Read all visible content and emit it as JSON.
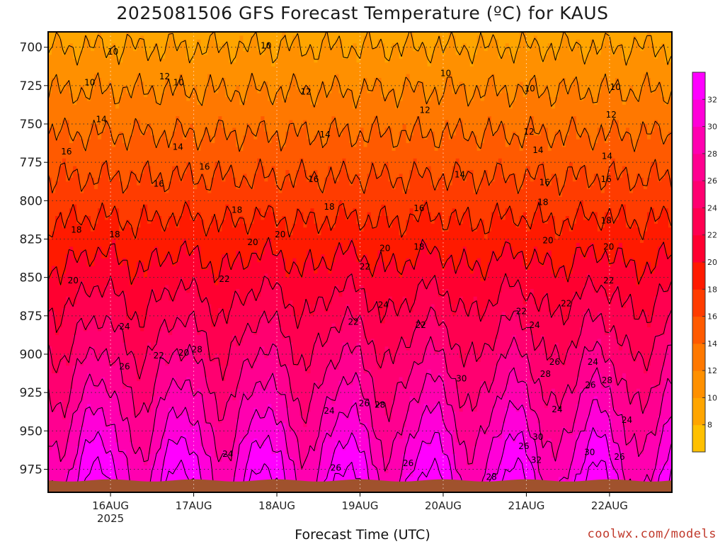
{
  "chart_data": {
    "type": "heatmap",
    "title": "2025081506 GFS Forecast Temperature (ºC) for KAUS",
    "xlabel": "Forecast Time (UTC)",
    "ylabel": "",
    "credit": "coolwx.com/models",
    "x_ticks": [
      "16AUG",
      "17AUG",
      "18AUG",
      "19AUG",
      "20AUG",
      "21AUG",
      "22AUG"
    ],
    "x_sublabel": "2025",
    "x_range_days": [
      15.25,
      22.75
    ],
    "y_ticks": [
      700,
      725,
      750,
      775,
      800,
      825,
      850,
      875,
      900,
      925,
      950,
      975
    ],
    "y_range_hpa": [
      690,
      990
    ],
    "y_inverted": true,
    "grid": "dotted",
    "colorbar": {
      "levels": [
        6,
        8,
        10,
        12,
        14,
        16,
        18,
        20,
        22,
        24,
        26,
        28,
        30,
        32,
        34
      ],
      "tick_labels": [
        "8",
        "10",
        "12",
        "14",
        "16",
        "18",
        "20",
        "22",
        "24",
        "26",
        "28",
        "30",
        "32"
      ],
      "colors": [
        "#ffc000",
        "#ffa500",
        "#ff9000",
        "#ff7800",
        "#ff5a00",
        "#ff3c00",
        "#ff1a00",
        "#ff0030",
        "#ff0050",
        "#ff0070",
        "#ff0090",
        "#ff00b0",
        "#ff00d8",
        "#ff00ff"
      ]
    },
    "contour_labels": [
      {
        "v": "10",
        "day": 15.75,
        "p": 723
      },
      {
        "v": "10",
        "day": 16.03,
        "p": 703
      },
      {
        "v": "12",
        "day": 16.65,
        "p": 719
      },
      {
        "v": "10",
        "day": 16.82,
        "p": 723
      },
      {
        "v": "14",
        "day": 15.89,
        "p": 747
      },
      {
        "v": "16",
        "day": 15.47,
        "p": 768
      },
      {
        "v": "14",
        "day": 16.81,
        "p": 765
      },
      {
        "v": "16",
        "day": 16.58,
        "p": 789
      },
      {
        "v": "16",
        "day": 17.13,
        "p": 778
      },
      {
        "v": "18",
        "day": 15.59,
        "p": 819
      },
      {
        "v": "18",
        "day": 16.05,
        "p": 822
      },
      {
        "v": "18",
        "day": 17.52,
        "p": 806
      },
      {
        "v": "20",
        "day": 15.55,
        "p": 852
      },
      {
        "v": "20",
        "day": 17.71,
        "p": 827
      },
      {
        "v": "20",
        "day": 18.04,
        "p": 822
      },
      {
        "v": "22",
        "day": 17.37,
        "p": 851
      },
      {
        "v": "24",
        "day": 16.17,
        "p": 882
      },
      {
        "v": "22",
        "day": 16.58,
        "p": 901
      },
      {
        "v": "20",
        "day": 16.88,
        "p": 899
      },
      {
        "v": "26",
        "day": 16.17,
        "p": 908
      },
      {
        "v": "28",
        "day": 17.04,
        "p": 897
      },
      {
        "v": "24",
        "day": 17.41,
        "p": 965
      },
      {
        "v": "14",
        "day": 18.58,
        "p": 757
      },
      {
        "v": "16",
        "day": 18.44,
        "p": 786
      },
      {
        "v": "12",
        "day": 18.35,
        "p": 729
      },
      {
        "v": "10",
        "day": 17.87,
        "p": 699
      },
      {
        "v": "18",
        "day": 18.63,
        "p": 804
      },
      {
        "v": "22",
        "day": 19.06,
        "p": 843
      },
      {
        "v": "20",
        "day": 19.3,
        "p": 831
      },
      {
        "v": "18",
        "day": 19.71,
        "p": 830
      },
      {
        "v": "16",
        "day": 19.71,
        "p": 805
      },
      {
        "v": "12",
        "day": 19.78,
        "p": 741
      },
      {
        "v": "14",
        "day": 20.2,
        "p": 783
      },
      {
        "v": "10",
        "day": 20.03,
        "p": 717
      },
      {
        "v": "24",
        "day": 19.28,
        "p": 868
      },
      {
        "v": "22",
        "day": 19.73,
        "p": 881
      },
      {
        "v": "22",
        "day": 18.92,
        "p": 879
      },
      {
        "v": "24",
        "day": 18.63,
        "p": 937
      },
      {
        "v": "26",
        "day": 19.05,
        "p": 932
      },
      {
        "v": "28",
        "day": 19.24,
        "p": 933
      },
      {
        "v": "26",
        "day": 18.71,
        "p": 974
      },
      {
        "v": "26",
        "day": 19.58,
        "p": 971
      },
      {
        "v": "30",
        "day": 20.22,
        "p": 916
      },
      {
        "v": "28",
        "day": 20.58,
        "p": 980
      },
      {
        "v": "26",
        "day": 20.97,
        "p": 960
      },
      {
        "v": "24",
        "day": 21.1,
        "p": 881
      },
      {
        "v": "22",
        "day": 20.94,
        "p": 872
      },
      {
        "v": "22",
        "day": 21.48,
        "p": 867
      },
      {
        "v": "10",
        "day": 21.04,
        "p": 727
      },
      {
        "v": "12",
        "day": 21.03,
        "p": 755
      },
      {
        "v": "14",
        "day": 21.14,
        "p": 767
      },
      {
        "v": "16",
        "day": 21.22,
        "p": 788
      },
      {
        "v": "18",
        "day": 21.2,
        "p": 801
      },
      {
        "v": "20",
        "day": 21.26,
        "p": 826
      },
      {
        "v": "28",
        "day": 21.23,
        "p": 913
      },
      {
        "v": "26",
        "day": 21.34,
        "p": 905
      },
      {
        "v": "24",
        "day": 21.37,
        "p": 936
      },
      {
        "v": "30",
        "day": 21.14,
        "p": 954
      },
      {
        "v": "32",
        "day": 21.12,
        "p": 969
      },
      {
        "v": "10",
        "day": 22.07,
        "p": 726
      },
      {
        "v": "12",
        "day": 22.02,
        "p": 744
      },
      {
        "v": "14",
        "day": 21.97,
        "p": 771
      },
      {
        "v": "16",
        "day": 21.96,
        "p": 786
      },
      {
        "v": "18",
        "day": 21.96,
        "p": 813
      },
      {
        "v": "20",
        "day": 21.99,
        "p": 830
      },
      {
        "v": "22",
        "day": 21.99,
        "p": 852
      },
      {
        "v": "24",
        "day": 21.8,
        "p": 905
      },
      {
        "v": "26",
        "day": 21.77,
        "p": 920
      },
      {
        "v": "28",
        "day": 21.97,
        "p": 917
      },
      {
        "v": "30",
        "day": 21.76,
        "p": 964
      },
      {
        "v": "26",
        "day": 22.12,
        "p": 967
      },
      {
        "v": "24",
        "day": 22.21,
        "p": 943
      }
    ]
  }
}
